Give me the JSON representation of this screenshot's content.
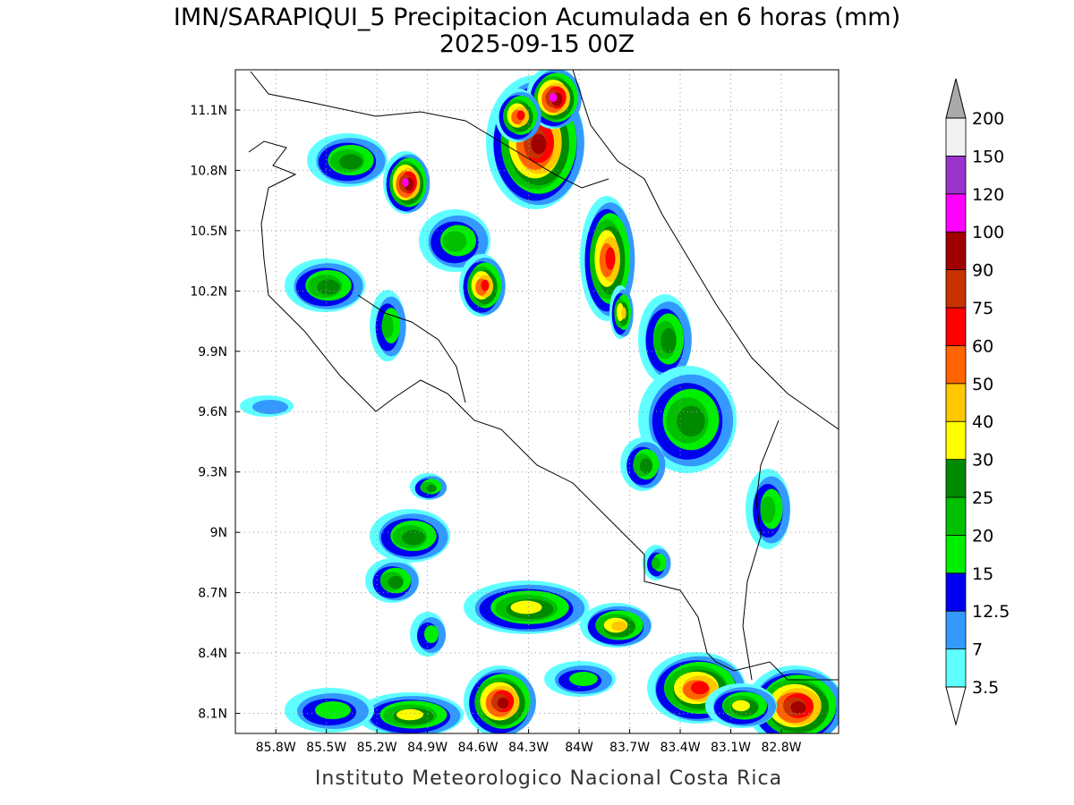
{
  "title": "IMN/SARAPIQUI_5 Precipitacion Acumulada en 6 horas (mm)",
  "subtitle": "2025-09-15 00Z",
  "footer": "Instituto Meteorologico Nacional Costa Rica",
  "map": {
    "lon_range": [
      -86.04,
      -82.46
    ],
    "lat_range": [
      8.0,
      11.3
    ],
    "lon_ticks": [
      {
        "value": -85.8,
        "label": "85.8W"
      },
      {
        "value": -85.5,
        "label": "85.5W"
      },
      {
        "value": -85.2,
        "label": "85.2W"
      },
      {
        "value": -84.9,
        "label": "84.9W"
      },
      {
        "value": -84.6,
        "label": "84.6W"
      },
      {
        "value": -84.3,
        "label": "84.3W"
      },
      {
        "value": -84.0,
        "label": "84W"
      },
      {
        "value": -83.7,
        "label": "83.7W"
      },
      {
        "value": -83.4,
        "label": "83.4W"
      },
      {
        "value": -83.1,
        "label": "83.1W"
      },
      {
        "value": -82.8,
        "label": "82.8W"
      }
    ],
    "lat_ticks": [
      {
        "value": 8.1,
        "label": "8.1N"
      },
      {
        "value": 8.4,
        "label": "8.4N"
      },
      {
        "value": 8.7,
        "label": "8.7N"
      },
      {
        "value": 9.0,
        "label": "9N"
      },
      {
        "value": 9.3,
        "label": "9.3N"
      },
      {
        "value": 9.6,
        "label": "9.6N"
      },
      {
        "value": 9.9,
        "label": "9.9N"
      },
      {
        "value": 10.2,
        "label": "10.2N"
      },
      {
        "value": 10.5,
        "label": "10.5N"
      },
      {
        "value": 10.8,
        "label": "10.8N"
      },
      {
        "value": 11.1,
        "label": "11.1N"
      }
    ]
  },
  "colorbar": {
    "levels": [
      3.5,
      7,
      12.5,
      15,
      20,
      25,
      30,
      40,
      50,
      60,
      75,
      90,
      100,
      120,
      150,
      200
    ],
    "colors": [
      "#5fffff",
      "#3399ff",
      "#0000f0",
      "#00ee00",
      "#00c000",
      "#008a00",
      "#ffff00",
      "#ffc800",
      "#ff6400",
      "#ff0000",
      "#c83200",
      "#a00000",
      "#ff00ff",
      "#9933cc",
      "#f2f2f2"
    ],
    "under_color": "#ffffff",
    "over_color": "#aaaaaa"
  }
}
